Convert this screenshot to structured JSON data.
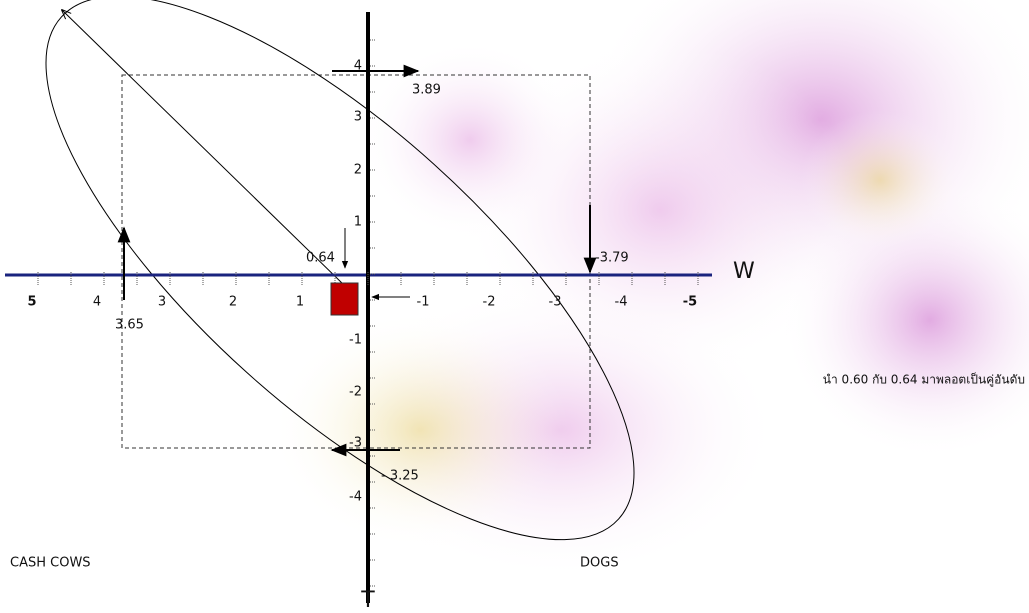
{
  "x_axis": {
    "label": "W",
    "ticks": [
      "5",
      "4",
      "3",
      "2",
      "1",
      "-1",
      "-2",
      "-3",
      "-4",
      "-5"
    ]
  },
  "y_axis": {
    "label": "T",
    "ticks": [
      "4",
      "3",
      "2",
      "1",
      "-1",
      "-2",
      "-3",
      "-4"
    ]
  },
  "annotations": {
    "top": "3.89",
    "center": "0.64",
    "right": "-3.79",
    "left": "3.65",
    "bottom": "- 3.25"
  },
  "quadrants": {
    "bottom_left": "CASH COWS",
    "bottom_right": "DOGS"
  },
  "note": "นำ 0.60 กับ 0.64 มาพลอตเป็นคู่อันดับ"
}
